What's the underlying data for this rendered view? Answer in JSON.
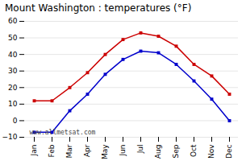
{
  "chart_data": {
    "type": "line",
    "title": "Mount Washington : temperatures (°F)",
    "categories": [
      "Jan",
      "Feb",
      "Mar",
      "Apr",
      "May",
      "Jun",
      "Jul",
      "Aug",
      "Sep",
      "Oct",
      "Nov",
      "Dec"
    ],
    "series": [
      {
        "color": "#cc0000",
        "values": [
          12,
          12,
          20,
          29,
          40,
          49,
          53,
          51,
          45,
          34,
          27,
          16
        ]
      },
      {
        "color": "#0000cc",
        "values": [
          -7,
          -7,
          6,
          16,
          28,
          37,
          42,
          41,
          34,
          24,
          13,
          0
        ]
      }
    ],
    "marker": "square",
    "ylim": [
      -10,
      60
    ],
    "yticks": [
      -10,
      0,
      10,
      20,
      30,
      40,
      50,
      60
    ],
    "grid": "y",
    "annotations": [
      "www.allmetsat.com"
    ]
  }
}
